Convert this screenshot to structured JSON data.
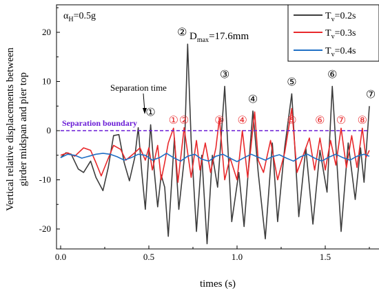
{
  "chart_data": {
    "type": "line",
    "xlabel": "times (s)",
    "ylabel_lines": [
      "Vertical relative displacements between",
      "girder midspan and pier top"
    ],
    "xlim": [
      0,
      1.78
    ],
    "ylim": [
      -24,
      26
    ],
    "x_ticks": [
      "0.0",
      "0.5",
      "1.0",
      "1.5"
    ],
    "y_ticks": [
      "20",
      "10",
      "0",
      "-10",
      "-20"
    ],
    "x_tick_values": [
      0,
      0.5,
      1.0,
      1.5
    ],
    "y_tick_values": [
      20,
      10,
      0,
      -10,
      -20
    ],
    "condition_label": "αH=0.5g",
    "condition_symbol": "α",
    "condition_sub": "H",
    "condition_value": "=0.5g",
    "legend_position": "top-right",
    "series": [
      {
        "name": "Tv=0.2s",
        "symbol": "T",
        "sub": "v",
        "value": "=0.2s",
        "color": "#3c3c3c",
        "points": [
          [
            0.0,
            -5.5
          ],
          [
            0.03,
            -4.5
          ],
          [
            0.06,
            -4.8
          ],
          [
            0.1,
            -7.8
          ],
          [
            0.13,
            -8.5
          ],
          [
            0.17,
            -6.2
          ],
          [
            0.2,
            -9.5
          ],
          [
            0.24,
            -12.2
          ],
          [
            0.27,
            -7.5
          ],
          [
            0.3,
            -1.0
          ],
          [
            0.33,
            -0.8
          ],
          [
            0.36,
            -6.5
          ],
          [
            0.39,
            -10.2
          ],
          [
            0.42,
            -5.5
          ],
          [
            0.44,
            0.6
          ],
          [
            0.46,
            -8.5
          ],
          [
            0.48,
            -16.0
          ],
          [
            0.51,
            1.2
          ],
          [
            0.53,
            -8.0
          ],
          [
            0.55,
            -15.5
          ],
          [
            0.57,
            -9.0
          ],
          [
            0.59,
            -11.5
          ],
          [
            0.61,
            -21.5
          ],
          [
            0.645,
            -1.5
          ],
          [
            0.67,
            -16.0
          ],
          [
            0.7,
            -6.0
          ],
          [
            0.72,
            17.6
          ],
          [
            0.74,
            -2.0
          ],
          [
            0.77,
            -20.5
          ],
          [
            0.8,
            -5.0
          ],
          [
            0.83,
            -23.0
          ],
          [
            0.86,
            -5.0
          ],
          [
            0.89,
            -11.5
          ],
          [
            0.93,
            9.0
          ],
          [
            0.97,
            -18.5
          ],
          [
            1.01,
            -8.5
          ],
          [
            1.04,
            -19.5
          ],
          [
            1.09,
            4.0
          ],
          [
            1.12,
            -8.5
          ],
          [
            1.16,
            -22.0
          ],
          [
            1.2,
            -2.5
          ],
          [
            1.23,
            -18.5
          ],
          [
            1.27,
            -3.5
          ],
          [
            1.31,
            7.5
          ],
          [
            1.35,
            -17.5
          ],
          [
            1.39,
            -3.5
          ],
          [
            1.43,
            -19.0
          ],
          [
            1.47,
            -4.0
          ],
          [
            1.51,
            -12.5
          ],
          [
            1.54,
            9.0
          ],
          [
            1.59,
            -20.5
          ],
          [
            1.63,
            -2.5
          ],
          [
            1.67,
            -14.0
          ],
          [
            1.7,
            -3.5
          ],
          [
            1.72,
            -10.5
          ],
          [
            1.75,
            5.0
          ]
        ]
      },
      {
        "name": "Tv=0.3s",
        "symbol": "T",
        "sub": "v",
        "value": "=0.3s",
        "color": "#e8282b",
        "points": [
          [
            0.0,
            -5.0
          ],
          [
            0.04,
            -4.5
          ],
          [
            0.08,
            -5.2
          ],
          [
            0.13,
            -3.5
          ],
          [
            0.17,
            -4.0
          ],
          [
            0.2,
            -6.5
          ],
          [
            0.23,
            -9.2
          ],
          [
            0.26,
            -6.5
          ],
          [
            0.3,
            -3.0
          ],
          [
            0.34,
            -3.8
          ],
          [
            0.37,
            -6.0
          ],
          [
            0.41,
            -4.8
          ],
          [
            0.45,
            -3.5
          ],
          [
            0.48,
            -6.0
          ],
          [
            0.5,
            -3.5
          ],
          [
            0.52,
            -8.0
          ],
          [
            0.55,
            -3.0
          ],
          [
            0.57,
            -10.0
          ],
          [
            0.59,
            -6.5
          ],
          [
            0.61,
            -2.5
          ],
          [
            0.64,
            0.5
          ],
          [
            0.665,
            -10.5
          ],
          [
            0.7,
            0.6
          ],
          [
            0.74,
            -9.5
          ],
          [
            0.77,
            -2.0
          ],
          [
            0.79,
            -8.0
          ],
          [
            0.82,
            -2.5
          ],
          [
            0.85,
            -8.5
          ],
          [
            0.88,
            -3.5
          ],
          [
            0.9,
            2.5
          ],
          [
            0.93,
            -10.0
          ],
          [
            0.96,
            -5.5
          ],
          [
            1.0,
            -10.0
          ],
          [
            1.03,
            0.0
          ],
          [
            1.06,
            -9.5
          ],
          [
            1.1,
            3.8
          ],
          [
            1.12,
            -6.0
          ],
          [
            1.15,
            -8.5
          ],
          [
            1.19,
            -2.0
          ],
          [
            1.23,
            -10.0
          ],
          [
            1.27,
            -4.5
          ],
          [
            1.31,
            4.5
          ],
          [
            1.34,
            -8.5
          ],
          [
            1.38,
            -4.5
          ],
          [
            1.41,
            -1.5
          ],
          [
            1.44,
            -8.0
          ],
          [
            1.47,
            -1.5
          ],
          [
            1.5,
            -8.0
          ],
          [
            1.53,
            -2.0
          ],
          [
            1.56,
            -7.0
          ],
          [
            1.59,
            0.5
          ],
          [
            1.62,
            -7.5
          ],
          [
            1.65,
            -1.0
          ],
          [
            1.68,
            -7.5
          ],
          [
            1.71,
            0.5
          ],
          [
            1.73,
            -5.5
          ],
          [
            1.75,
            -4.0
          ]
        ]
      },
      {
        "name": "Tv=0.4s",
        "symbol": "T",
        "sub": "v",
        "value": "=0.4s",
        "color": "#1f6fc5",
        "points": [
          [
            0.0,
            -5.5
          ],
          [
            0.04,
            -4.8
          ],
          [
            0.08,
            -5.0
          ],
          [
            0.12,
            -5.6
          ],
          [
            0.16,
            -5.2
          ],
          [
            0.2,
            -4.8
          ],
          [
            0.24,
            -4.6
          ],
          [
            0.28,
            -4.8
          ],
          [
            0.32,
            -5.3
          ],
          [
            0.36,
            -6.0
          ],
          [
            0.4,
            -5.5
          ],
          [
            0.44,
            -4.8
          ],
          [
            0.48,
            -5.0
          ],
          [
            0.52,
            -6.0
          ],
          [
            0.56,
            -5.5
          ],
          [
            0.6,
            -4.6
          ],
          [
            0.64,
            -5.5
          ],
          [
            0.68,
            -6.2
          ],
          [
            0.72,
            -5.2
          ],
          [
            0.76,
            -4.8
          ],
          [
            0.8,
            -5.8
          ],
          [
            0.84,
            -6.2
          ],
          [
            0.88,
            -5.2
          ],
          [
            0.92,
            -4.8
          ],
          [
            0.96,
            -5.6
          ],
          [
            1.0,
            -6.3
          ],
          [
            1.04,
            -5.5
          ],
          [
            1.08,
            -4.8
          ],
          [
            1.12,
            -5.4
          ],
          [
            1.16,
            -6.0
          ],
          [
            1.2,
            -5.3
          ],
          [
            1.24,
            -4.9
          ],
          [
            1.28,
            -5.6
          ],
          [
            1.32,
            -6.2
          ],
          [
            1.36,
            -5.3
          ],
          [
            1.4,
            -4.8
          ],
          [
            1.44,
            -5.6
          ],
          [
            1.48,
            -6.2
          ],
          [
            1.52,
            -5.4
          ],
          [
            1.56,
            -4.8
          ],
          [
            1.6,
            -5.5
          ],
          [
            1.64,
            -6.0
          ],
          [
            1.68,
            -5.2
          ],
          [
            1.72,
            -4.8
          ],
          [
            1.75,
            -5.2
          ]
        ]
      }
    ],
    "separation_boundary": {
      "y": 0,
      "label": "Separation boundary",
      "color": "#6a1bd6"
    },
    "dmax_label": {
      "prefix": "D",
      "sub": "max",
      "value": "=17.6mm",
      "x": 0.72,
      "y": 17.6
    },
    "separation_time_label": "Separation time",
    "markers_black": [
      {
        "label": "①",
        "x": 0.51,
        "y": 1.2
      },
      {
        "label": "②",
        "x": 0.72,
        "y": 17.6
      },
      {
        "label": "③",
        "x": 0.93,
        "y": 9.0
      },
      {
        "label": "④",
        "x": 1.09,
        "y": 4.0
      },
      {
        "label": "⑤",
        "x": 1.31,
        "y": 7.5
      },
      {
        "label": "⑥",
        "x": 1.54,
        "y": 9.0
      },
      {
        "label": "⑦",
        "x": 1.75,
        "y": 5.0
      }
    ],
    "markers_red": [
      {
        "label": "①",
        "x": 0.64,
        "y": 0.5
      },
      {
        "label": "②",
        "x": 0.7,
        "y": 0.6
      },
      {
        "label": "③",
        "x": 0.9,
        "y": 2.5
      },
      {
        "label": "④",
        "x": 1.03,
        "y": 0.0
      },
      {
        "label": "⑤",
        "x": 1.31,
        "y": 4.5
      },
      {
        "label": "⑥",
        "x": 1.47,
        "y": -1.5
      },
      {
        "label": "⑦",
        "x": 1.59,
        "y": 0.5
      },
      {
        "label": "⑧",
        "x": 1.71,
        "y": 0.5
      }
    ]
  }
}
